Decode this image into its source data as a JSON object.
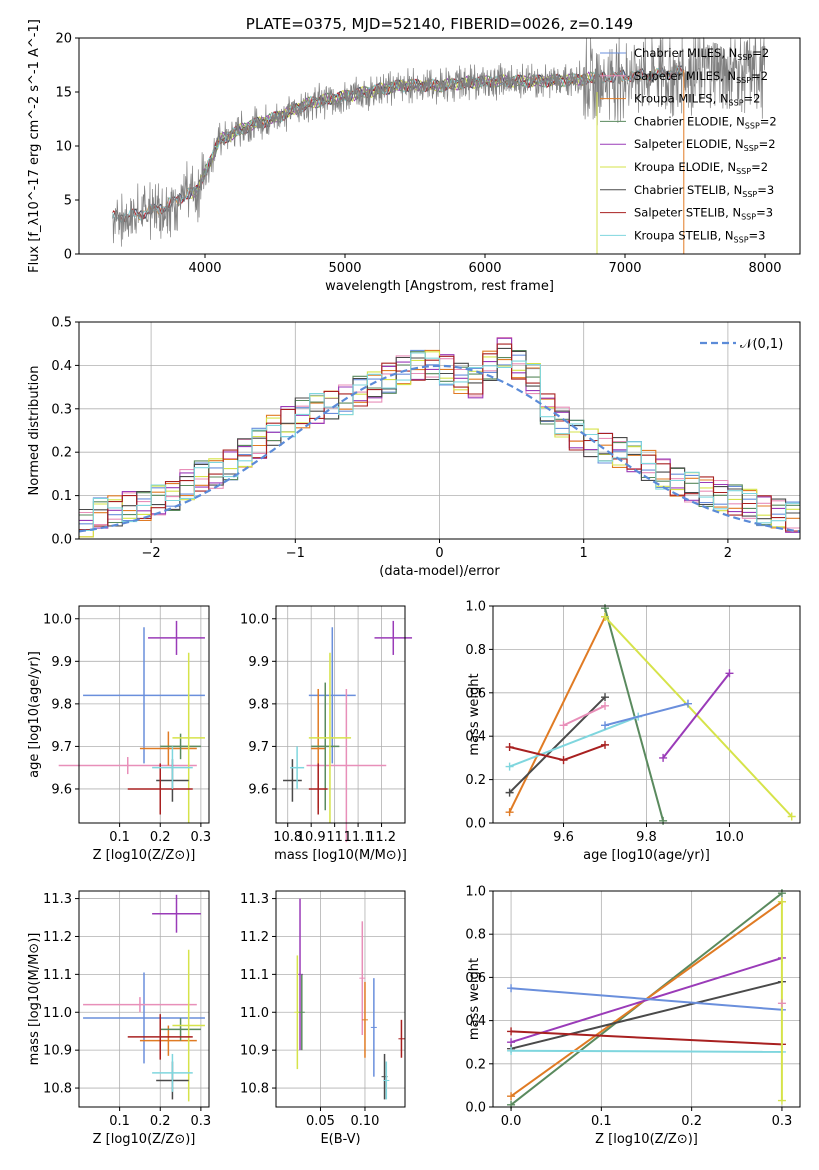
{
  "chart_data": [
    {
      "type": "line",
      "title": "PLATE=0375, MJD=52140, FIBERID=0026, z=0.149",
      "xlabel": "wavelength [Angstrom, rest frame]",
      "ylabel": "Flux [f_λ10^-17 erg cm^-2 s^-1 A^-1]",
      "xlim": [
        3100,
        8250
      ],
      "ylim": [
        0,
        20
      ],
      "xticks": [
        4000,
        5000,
        6000,
        7000,
        8000
      ],
      "yticks": [
        0,
        5,
        10,
        15,
        20
      ],
      "grid": false,
      "legend_position": "upper-right",
      "data_spectrum": {
        "color": "#808080",
        "x": [
          3340,
          3500,
          3700,
          3950,
          4100,
          4300,
          4500,
          4750,
          5000,
          5200,
          5400,
          5700,
          5900,
          6100,
          6350,
          6600,
          6900,
          7200,
          7500,
          7800,
          8000
        ],
        "y": [
          3.4,
          3.6,
          4.3,
          6.0,
          10.5,
          11.8,
          12.6,
          14.0,
          14.6,
          15.1,
          15.6,
          15.6,
          15.9,
          16.0,
          16.0,
          16.1,
          16.4,
          16.6,
          17.0,
          17.3,
          17.0
        ]
      },
      "series": [
        {
          "name": "Chabrier MILES, N_SSP=2",
          "color": "#6a8fdc",
          "xrange": [
            3500,
            7420
          ]
        },
        {
          "name": "Salpeter MILES, N_SSP=2",
          "color": "#e88fb9",
          "xrange": [
            3500,
            7420
          ]
        },
        {
          "name": "Kroupa MILES, N_SSP=2",
          "color": "#e07b24",
          "xrange": [
            3500,
            7420
          ]
        },
        {
          "name": "Chabrier ELODIE, N_SSP=2",
          "color": "#5a8a5e",
          "xrange": [
            3900,
            6800
          ]
        },
        {
          "name": "Salpeter ELODIE, N_SSP=2",
          "color": "#9a3bb8",
          "xrange": [
            3900,
            6800
          ]
        },
        {
          "name": "Kroupa ELODIE, N_SSP=2",
          "color": "#d6e34a",
          "xrange": [
            3900,
            6800
          ]
        },
        {
          "name": "Chabrier STELIB, N_SSP=3",
          "color": "#4a4a4a",
          "xrange": [
            3340,
            7420
          ]
        },
        {
          "name": "Salpeter STELIB, N_SSP=3",
          "color": "#a82020",
          "xrange": [
            3340,
            7420
          ]
        },
        {
          "name": "Kroupa STELIB, N_SSP=3",
          "color": "#7fd6de",
          "xrange": [
            3340,
            7420
          ]
        }
      ]
    },
    {
      "type": "bar",
      "xlabel": "(data-model)/error",
      "ylabel": "Normed distribution",
      "xlim": [
        -2.5,
        2.5
      ],
      "ylim": [
        0,
        0.5
      ],
      "xticks": [
        -2,
        -1,
        0,
        1,
        2
      ],
      "yticks": [
        0.0,
        0.1,
        0.2,
        0.3,
        0.4,
        0.5
      ],
      "grid": true,
      "legend_position": "upper-right",
      "bin_edges_start": -2.5,
      "bin_width": 0.1,
      "histogram_values": [
        0.035,
        0.06,
        0.065,
        0.075,
        0.075,
        0.09,
        0.1,
        0.125,
        0.145,
        0.15,
        0.17,
        0.2,
        0.22,
        0.25,
        0.27,
        0.29,
        0.3,
        0.31,
        0.32,
        0.34,
        0.35,
        0.37,
        0.39,
        0.4,
        0.4,
        0.39,
        0.37,
        0.36,
        0.4,
        0.43,
        0.4,
        0.37,
        0.3,
        0.27,
        0.24,
        0.22,
        0.21,
        0.2,
        0.19,
        0.17,
        0.15,
        0.13,
        0.12,
        0.11,
        0.1,
        0.09,
        0.08,
        0.065,
        0.06,
        0.05
      ],
      "reference_curve": {
        "name": "𝒩(0,1)",
        "color": "#5b8bd8",
        "dashed": true
      }
    },
    {
      "type": "scatter",
      "xlabel": "Z [log10(Z/Z⊙)]",
      "ylabel": "age  [log10(age/yr)]",
      "xlim": [
        0.0,
        0.32
      ],
      "ylim": [
        9.52,
        10.03
      ],
      "xticks": [
        0.1,
        0.2,
        0.3
      ],
      "yticks": [
        9.6,
        9.7,
        9.8,
        9.9,
        10.0
      ],
      "grid": true,
      "points": [
        {
          "color": "#6a8fdc",
          "x": 0.16,
          "xerr": 0.15,
          "y": 9.82,
          "yerr": 0.16
        },
        {
          "color": "#e88fb9",
          "x": 0.12,
          "xerr": 0.17,
          "y": 9.655,
          "yerr": 0.02
        },
        {
          "color": "#e07b24",
          "x": 0.22,
          "xerr": 0.07,
          "y": 9.695,
          "yerr": 0.04
        },
        {
          "color": "#5a8a5e",
          "x": 0.25,
          "xerr": 0.05,
          "y": 9.7,
          "yerr": 0.03
        },
        {
          "color": "#9a3bb8",
          "x": 0.24,
          "xerr": 0.07,
          "y": 9.955,
          "yerr": 0.04
        },
        {
          "color": "#d6e34a",
          "x": 0.27,
          "xerr": 0.04,
          "y": 9.72,
          "yerr": 0.2
        },
        {
          "color": "#4a4a4a",
          "x": 0.23,
          "xerr": 0.04,
          "y": 9.62,
          "yerr": 0.05
        },
        {
          "color": "#a82020",
          "x": 0.2,
          "xerr": 0.08,
          "y": 9.6,
          "yerr": 0.06
        },
        {
          "color": "#7fd6de",
          "x": 0.23,
          "xerr": 0.05,
          "y": 9.65,
          "yerr": 0.05
        }
      ]
    },
    {
      "type": "scatter",
      "xlabel": "mass [log10(M/M⊙)]",
      "ylabel": "",
      "xlim": [
        10.75,
        11.3
      ],
      "ylim": [
        9.52,
        10.03
      ],
      "xticks": [
        10.8,
        10.9,
        11.0,
        11.1,
        11.2
      ],
      "yticks": [
        9.6,
        9.7,
        9.8,
        9.9,
        10.0
      ],
      "grid": true,
      "points": [
        {
          "color": "#6a8fdc",
          "x": 10.99,
          "xerr": 0.1,
          "y": 9.82,
          "yerr": 0.16
        },
        {
          "color": "#e88fb9",
          "x": 11.05,
          "xerr": 0.17,
          "y": 9.655,
          "yerr": 0.18
        },
        {
          "color": "#e07b24",
          "x": 10.93,
          "xerr": 0.03,
          "y": 9.695,
          "yerr": 0.14
        },
        {
          "color": "#5a8a5e",
          "x": 10.96,
          "xerr": 0.06,
          "y": 9.7,
          "yerr": 0.15
        },
        {
          "color": "#9a3bb8",
          "x": 11.25,
          "xerr": 0.08,
          "y": 9.955,
          "yerr": 0.04
        },
        {
          "color": "#d6e34a",
          "x": 10.98,
          "xerr": 0.09,
          "y": 9.72,
          "yerr": 0.2
        },
        {
          "color": "#4a4a4a",
          "x": 10.82,
          "xerr": 0.04,
          "y": 9.62,
          "yerr": 0.05
        },
        {
          "color": "#a82020",
          "x": 10.93,
          "xerr": 0.04,
          "y": 9.6,
          "yerr": 0.06
        },
        {
          "color": "#7fd6de",
          "x": 10.84,
          "xerr": 0.03,
          "y": 9.65,
          "yerr": 0.05
        }
      ]
    },
    {
      "type": "line",
      "xlabel": "age  [log10(age/yr)]",
      "ylabel": "mass weight",
      "xlim": [
        9.43,
        10.17
      ],
      "ylim": [
        0.0,
        1.0
      ],
      "xticks": [
        9.6,
        9.8,
        10.0
      ],
      "yticks": [
        0.0,
        0.2,
        0.4,
        0.6,
        0.8,
        1.0
      ],
      "grid": true,
      "series": [
        {
          "color": "#e07b24",
          "x": [
            9.47,
            9.7
          ],
          "y": [
            0.05,
            0.95
          ]
        },
        {
          "color": "#5a8a5e",
          "x": [
            9.7,
            9.84
          ],
          "y": [
            0.99,
            0.01
          ]
        },
        {
          "color": "#d6e34a",
          "x": [
            9.7,
            10.15
          ],
          "y": [
            0.95,
            0.03
          ]
        },
        {
          "color": "#4a4a4a",
          "x": [
            9.47,
            9.7
          ],
          "y": [
            0.14,
            0.58
          ]
        },
        {
          "color": "#7fd6de",
          "x": [
            9.47,
            9.78
          ],
          "y": [
            0.26,
            0.49
          ]
        },
        {
          "color": "#6a8fdc",
          "x": [
            9.7,
            9.9
          ],
          "y": [
            0.45,
            0.55
          ]
        },
        {
          "color": "#e88fb9",
          "x": [
            9.6,
            9.7
          ],
          "y": [
            0.45,
            0.54
          ]
        },
        {
          "color": "#a82020",
          "x": [
            9.47,
            9.6,
            9.7
          ],
          "y": [
            0.35,
            0.29,
            0.36
          ]
        },
        {
          "color": "#9a3bb8",
          "x": [
            9.84,
            10.0
          ],
          "y": [
            0.3,
            0.69
          ]
        }
      ]
    },
    {
      "type": "scatter",
      "xlabel": "Z [log10(Z/Z⊙)]",
      "ylabel": "mass [log10(M/M⊙)]",
      "xlim": [
        0.0,
        0.32
      ],
      "ylim": [
        10.75,
        11.32
      ],
      "xticks": [
        0.1,
        0.2,
        0.3
      ],
      "yticks": [
        10.8,
        10.9,
        11.0,
        11.1,
        11.2,
        11.3
      ],
      "grid": true,
      "points": [
        {
          "color": "#6a8fdc",
          "x": 0.16,
          "xerr": 0.15,
          "y": 10.985,
          "yerr": 0.12
        },
        {
          "color": "#e88fb9",
          "x": 0.15,
          "xerr": 0.14,
          "y": 11.02,
          "yerr": 0.02
        },
        {
          "color": "#e07b24",
          "x": 0.22,
          "xerr": 0.07,
          "y": 10.925,
          "yerr": 0.04
        },
        {
          "color": "#5a8a5e",
          "x": 0.25,
          "xerr": 0.05,
          "y": 10.955,
          "yerr": 0.03
        },
        {
          "color": "#9a3bb8",
          "x": 0.24,
          "xerr": 0.06,
          "y": 11.26,
          "yerr": 0.05
        },
        {
          "color": "#d6e34a",
          "x": 0.27,
          "xerr": 0.04,
          "y": 10.965,
          "yerr": 0.2
        },
        {
          "color": "#4a4a4a",
          "x": 0.23,
          "xerr": 0.04,
          "y": 10.82,
          "yerr": 0.05
        },
        {
          "color": "#a82020",
          "x": 0.2,
          "xerr": 0.08,
          "y": 10.935,
          "yerr": 0.06
        },
        {
          "color": "#7fd6de",
          "x": 0.23,
          "xerr": 0.05,
          "y": 10.84,
          "yerr": 0.05
        }
      ]
    },
    {
      "type": "scatter",
      "xlabel": "E(B-V)",
      "ylabel": "",
      "xlim": [
        0.0,
        0.145
      ],
      "ylim": [
        10.75,
        11.32
      ],
      "xticks": [
        0.05,
        0.1
      ],
      "yticks": [
        10.8,
        10.9,
        11.0,
        11.1,
        11.2,
        11.3
      ],
      "grid": true,
      "points": [
        {
          "color": "#9a3bb8",
          "x": 0.027,
          "y": 11.1,
          "yerr": 0.2
        },
        {
          "color": "#d6e34a",
          "x": 0.024,
          "y": 11.0,
          "yerr": 0.15
        },
        {
          "color": "#5a8a5e",
          "x": 0.029,
          "y": 11.0,
          "yerr": 0.1
        },
        {
          "color": "#e88fb9",
          "x": 0.097,
          "y": 11.09,
          "yerr": 0.15
        },
        {
          "color": "#e07b24",
          "x": 0.1,
          "y": 10.98,
          "yerr": 0.1
        },
        {
          "color": "#6a8fdc",
          "x": 0.11,
          "y": 10.96,
          "yerr": 0.13
        },
        {
          "color": "#4a4a4a",
          "x": 0.122,
          "y": 10.83,
          "yerr": 0.06
        },
        {
          "color": "#7fd6de",
          "x": 0.124,
          "y": 10.82,
          "yerr": 0.05
        },
        {
          "color": "#a82020",
          "x": 0.141,
          "y": 10.93,
          "yerr": 0.05
        }
      ]
    },
    {
      "type": "line",
      "xlabel": "Z [log10(Z/Z⊙)]",
      "ylabel": "mass weight",
      "xlim": [
        -0.02,
        0.32
      ],
      "ylim": [
        0.0,
        1.0
      ],
      "xticks": [
        0.0,
        0.1,
        0.2,
        0.3
      ],
      "yticks": [
        0.0,
        0.2,
        0.4,
        0.6,
        0.8,
        1.0
      ],
      "grid": true,
      "series": [
        {
          "color": "#5a8a5e",
          "x": [
            0.0,
            0.3
          ],
          "y": [
            0.01,
            0.99
          ]
        },
        {
          "color": "#e07b24",
          "x": [
            0.0,
            0.3
          ],
          "y": [
            0.05,
            0.95
          ]
        },
        {
          "color": "#9a3bb8",
          "x": [
            0.0,
            0.3
          ],
          "y": [
            0.3,
            0.69
          ]
        },
        {
          "color": "#4a4a4a",
          "x": [
            0.0,
            0.3
          ],
          "y": [
            0.27,
            0.58
          ]
        },
        {
          "color": "#6a8fdc",
          "x": [
            0.0,
            0.3
          ],
          "y": [
            0.55,
            0.45
          ]
        },
        {
          "color": "#a82020",
          "x": [
            0.0,
            0.3
          ],
          "y": [
            0.35,
            0.29
          ]
        },
        {
          "color": "#7fd6de",
          "x": [
            0.0,
            0.3
          ],
          "y": [
            0.26,
            0.255
          ]
        },
        {
          "color": "#d6e34a",
          "x": [
            0.3,
            0.3
          ],
          "y": [
            0.95,
            0.03
          ]
        },
        {
          "color": "#e88fb9",
          "x": [
            0.3
          ],
          "y": [
            0.48
          ]
        }
      ]
    }
  ]
}
